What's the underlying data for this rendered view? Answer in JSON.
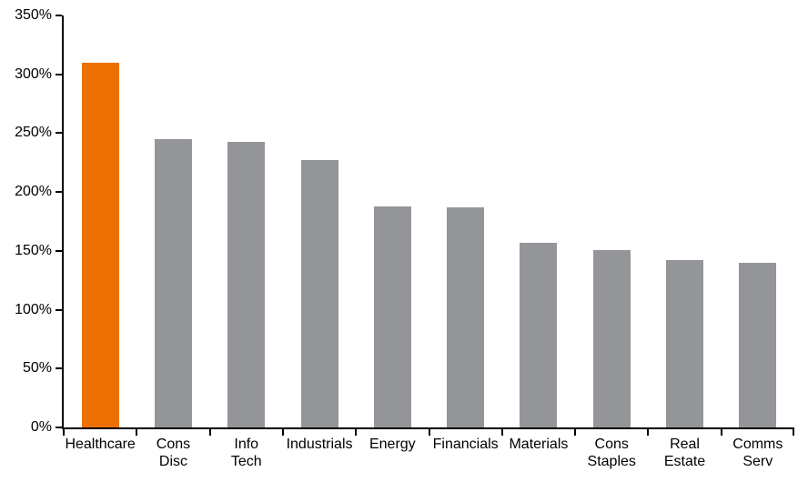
{
  "chart_data": {
    "type": "bar",
    "title": "",
    "xlabel": "",
    "ylabel": "",
    "categories": [
      "Healthcare",
      "Cons\nDisc",
      "Info\nTech",
      "Industrials",
      "Energy",
      "Financials",
      "Materials",
      "Cons\nStaples",
      "Real\nEstate",
      "Comms\nServ"
    ],
    "category_keys": [
      "healthcare",
      "cons-disc",
      "info-tech",
      "industrials",
      "energy",
      "financials",
      "materials",
      "cons-staples",
      "real-estate",
      "comms-serv"
    ],
    "values": [
      310,
      245,
      243,
      227,
      188,
      187,
      157,
      151,
      142,
      140
    ],
    "value_suffix": "%",
    "ylim": [
      0,
      350
    ],
    "ytick_step": 50,
    "ytick_labels": [
      "0%",
      "50%",
      "100%",
      "150%",
      "200%",
      "250%",
      "300%",
      "350%"
    ],
    "grid": false,
    "legend": false,
    "bar_color_default": "#939598",
    "bar_color_highlight": "#ED7005",
    "highlight_index": 0,
    "axis_color": "#000000",
    "text_color": "#000000",
    "background_color": "#FFFFFF"
  }
}
